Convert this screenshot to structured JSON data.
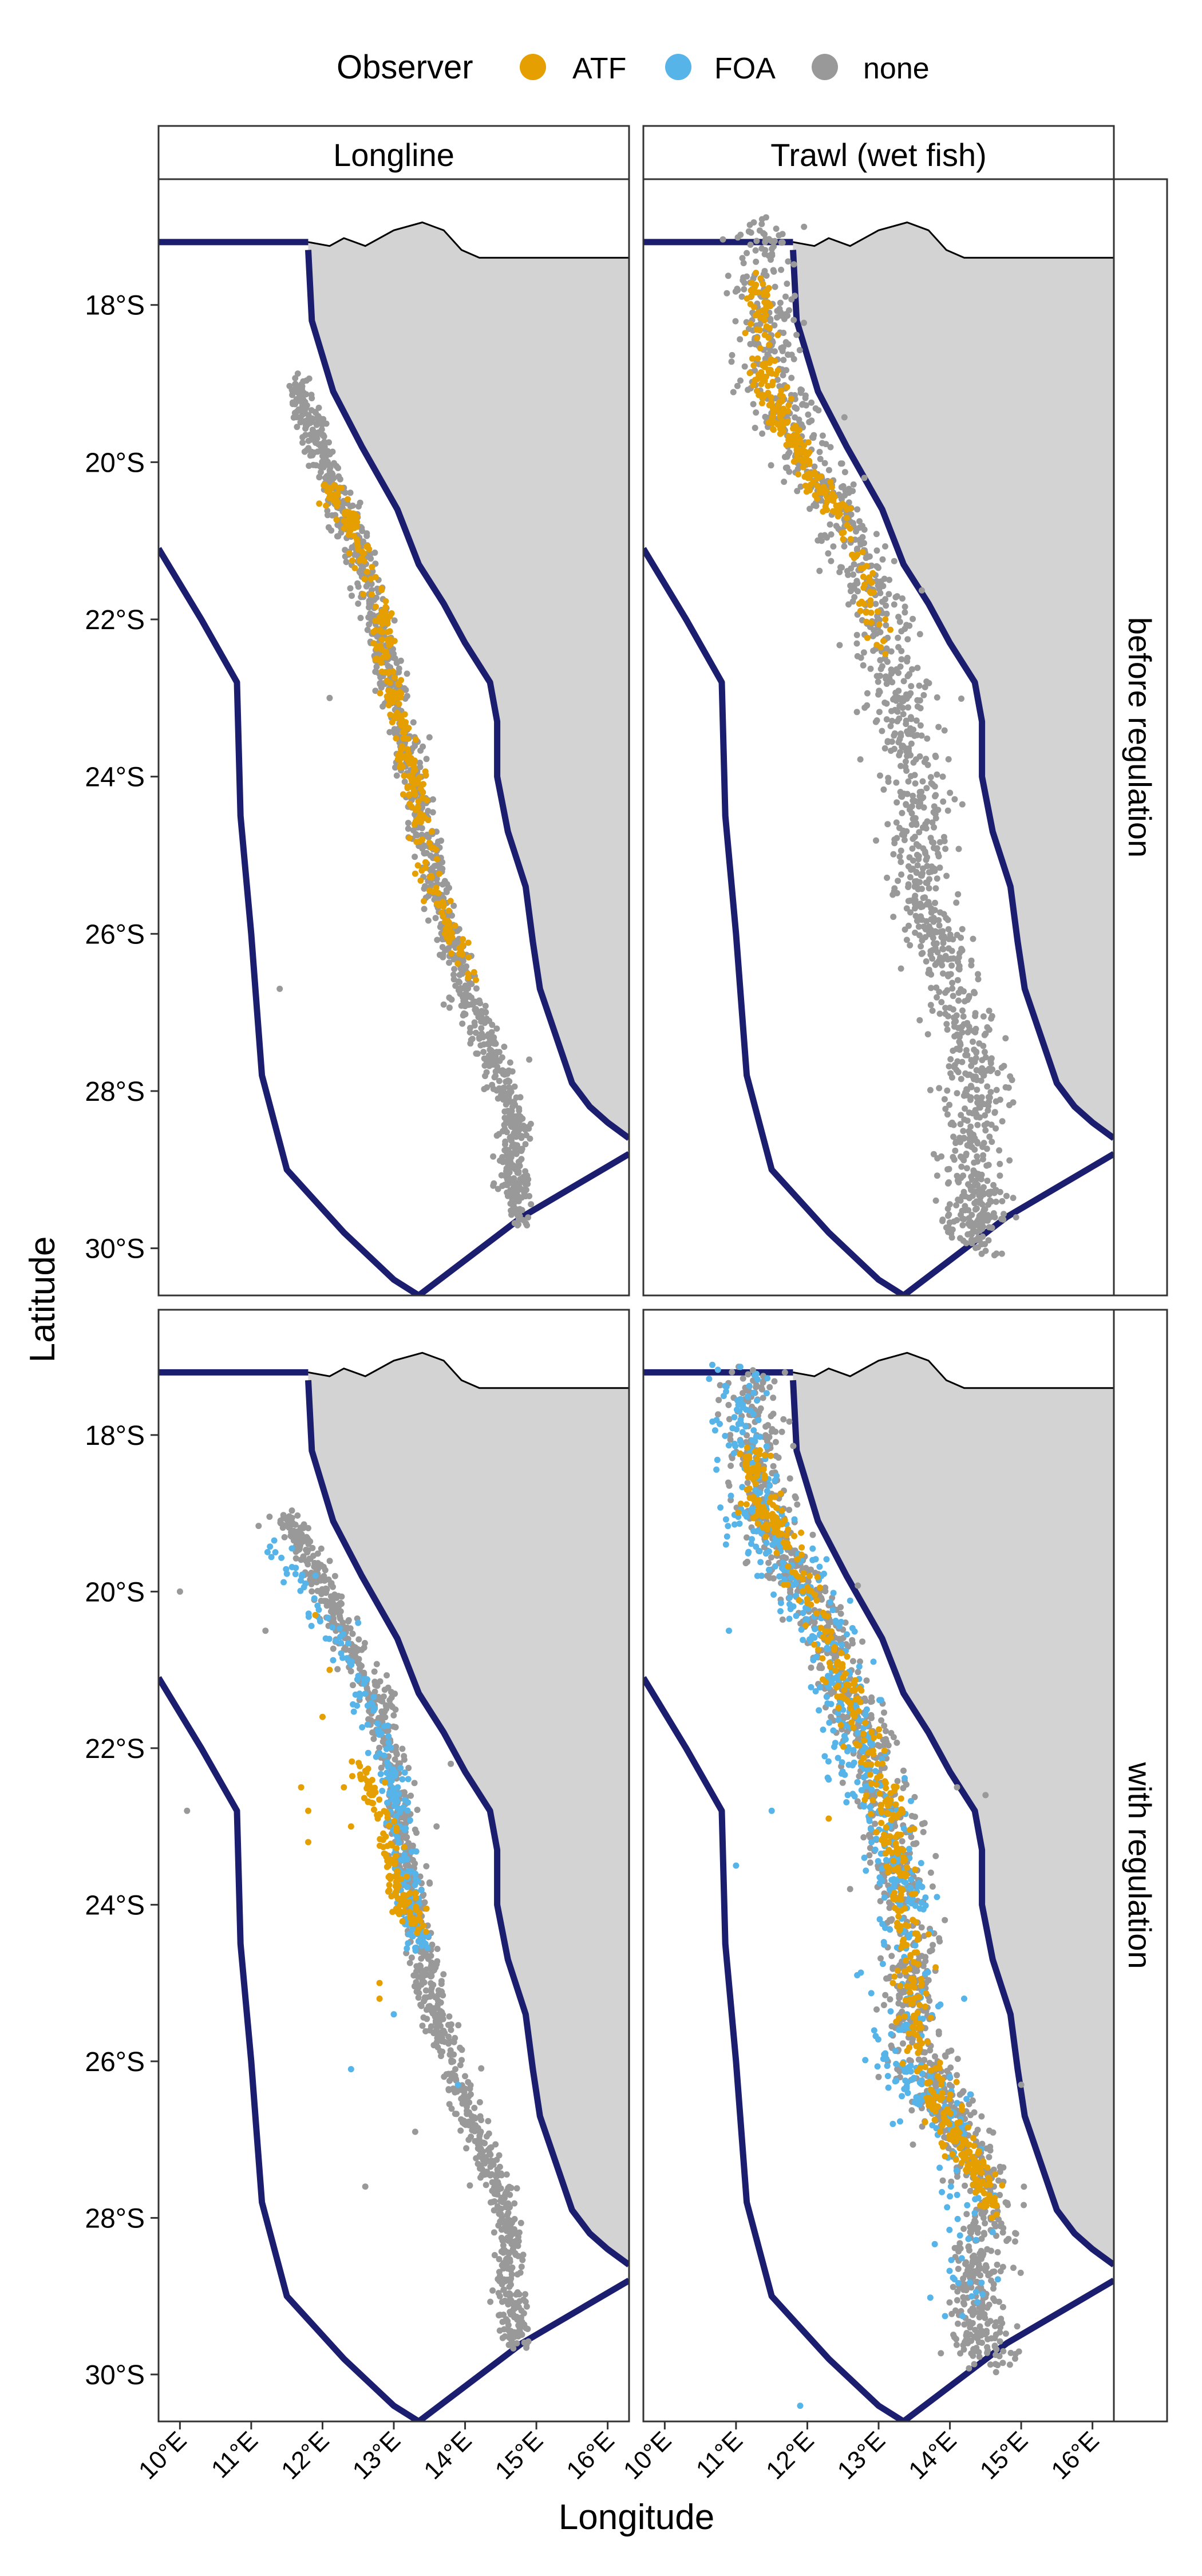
{
  "chart_data": {
    "type": "faceted-map",
    "xlabel": "Longitude",
    "ylabel": "Latitude",
    "xlim": [
      9.7,
      16.3
    ],
    "ylim": [
      -30.6,
      -16.4
    ],
    "x_ticks": [
      "10°E",
      "11°E",
      "12°E",
      "13°E",
      "14°E",
      "15°E",
      "16°E"
    ],
    "x_tick_values": [
      10,
      11,
      12,
      13,
      14,
      15,
      16
    ],
    "y_ticks": [
      "18°S",
      "20°S",
      "22°S",
      "24°S",
      "26°S",
      "28°S",
      "30°S"
    ],
    "y_tick_values": [
      -18,
      -20,
      -22,
      -24,
      -26,
      -28,
      -30
    ],
    "legend": {
      "title": "Observer",
      "position": "top",
      "items": [
        {
          "label": "ATF",
          "color": "#E69F00"
        },
        {
          "label": "FOA",
          "color": "#56B4E9"
        },
        {
          "label": "none",
          "color": "#999999"
        }
      ]
    },
    "columns": [
      "Longline",
      "Trawl (wet fish)"
    ],
    "rows": [
      "before regulation",
      "with regulation"
    ],
    "land_color": "#D3D3D3",
    "boundary_color": "#1B1D6E",
    "coastline": [
      [
        10.3,
        -16.3
      ],
      [
        11.8,
        -17.3
      ],
      [
        11.85,
        -18.2
      ],
      [
        12.15,
        -19.1
      ],
      [
        12.55,
        -19.8
      ],
      [
        13.05,
        -20.6
      ],
      [
        13.35,
        -21.3
      ],
      [
        13.7,
        -21.8
      ],
      [
        14.0,
        -22.3
      ],
      [
        14.35,
        -22.8
      ],
      [
        14.45,
        -23.3
      ],
      [
        14.45,
        -24.0
      ],
      [
        14.6,
        -24.7
      ],
      [
        14.85,
        -25.4
      ],
      [
        14.95,
        -26.1
      ],
      [
        15.05,
        -26.7
      ],
      [
        15.2,
        -27.1
      ],
      [
        15.35,
        -27.5
      ],
      [
        15.5,
        -27.9
      ],
      [
        15.75,
        -28.2
      ],
      [
        16.0,
        -28.4
      ],
      [
        16.3,
        -28.6
      ]
    ],
    "land_border": [
      [
        11.8,
        -17.2
      ],
      [
        12.1,
        -17.25
      ],
      [
        12.3,
        -17.15
      ],
      [
        12.6,
        -17.25
      ],
      [
        13.0,
        -17.05
      ],
      [
        13.4,
        -16.95
      ],
      [
        13.7,
        -17.05
      ],
      [
        13.95,
        -17.3
      ],
      [
        14.2,
        -17.4
      ],
      [
        16.3,
        -17.4
      ]
    ],
    "eez_outer": [
      [
        9.7,
        -21.1
      ],
      [
        10.3,
        -22.0
      ],
      [
        10.8,
        -22.8
      ],
      [
        10.85,
        -24.5
      ],
      [
        11.0,
        -26.0
      ],
      [
        11.15,
        -27.8
      ],
      [
        11.5,
        -29.0
      ],
      [
        12.3,
        -29.8
      ],
      [
        13.0,
        -30.4
      ],
      [
        13.35,
        -30.6
      ]
    ],
    "eez_north": [
      [
        9.7,
        -17.2
      ],
      [
        11.8,
        -17.2
      ]
    ],
    "eez_south": [
      [
        13.35,
        -30.6
      ],
      [
        14.8,
        -29.6
      ],
      [
        16.3,
        -28.8
      ]
    ],
    "panels": [
      {
        "col": "Longline",
        "row": "before regulation",
        "tracks": [
          {
            "observer": "none",
            "spread": 0.1,
            "points": [
              [
                11.6,
                -18.9
              ],
              [
                11.9,
                -19.7
              ],
              [
                12.2,
                -20.4
              ],
              [
                12.55,
                -21.2
              ],
              [
                12.8,
                -22.2
              ],
              [
                13.0,
                -23.0
              ],
              [
                13.25,
                -24.0
              ],
              [
                13.5,
                -25.0
              ],
              [
                13.75,
                -26.0
              ],
              [
                14.05,
                -26.8
              ],
              [
                14.4,
                -27.6
              ],
              [
                14.7,
                -28.4
              ],
              [
                14.65,
                -29.0
              ],
              [
                14.8,
                -29.7
              ]
            ]
          },
          {
            "observer": "ATF",
            "spread": 0.08,
            "points": [
              [
                12.05,
                -20.3
              ],
              [
                12.4,
                -20.8
              ],
              [
                12.85,
                -22.0
              ],
              [
                12.95,
                -22.8
              ],
              [
                13.15,
                -23.6
              ],
              [
                13.3,
                -24.2
              ],
              [
                13.55,
                -25.4
              ],
              [
                14.15,
                -26.6
              ]
            ]
          }
        ],
        "scatter": {
          "observer": "none",
          "points": [
            [
              12.1,
              -23.0
            ],
            [
              11.4,
              -26.7
            ],
            [
              13.7,
              -26.9
            ],
            [
              12.5,
              -21.8
            ],
            [
              13.5,
              -23.5
            ],
            [
              14.9,
              -27.6
            ]
          ]
        }
      },
      {
        "col": "Trawl (wet fish)",
        "row": "before regulation",
        "tracks": [
          {
            "observer": "none",
            "spread": 0.22,
            "points": [
              [
                11.4,
                -17.0
              ],
              [
                11.4,
                -18.0
              ],
              [
                11.5,
                -19.0
              ],
              [
                11.9,
                -19.8
              ],
              [
                12.4,
                -20.6
              ],
              [
                12.9,
                -21.6
              ],
              [
                13.2,
                -22.6
              ],
              [
                13.4,
                -23.5
              ],
              [
                13.6,
                -24.5
              ],
              [
                13.55,
                -25.4
              ],
              [
                13.85,
                -26.2
              ],
              [
                14.2,
                -27.1
              ],
              [
                14.4,
                -28.0
              ],
              [
                14.2,
                -28.8
              ],
              [
                14.35,
                -29.5
              ],
              [
                14.4,
                -29.9
              ]
            ]
          },
          {
            "observer": "ATF",
            "spread": 0.1,
            "points": [
              [
                11.3,
                -17.6
              ],
              [
                11.35,
                -18.6
              ],
              [
                11.5,
                -19.2
              ],
              [
                11.8,
                -19.7
              ],
              [
                12.1,
                -20.2
              ],
              [
                12.5,
                -20.7
              ],
              [
                13.1,
                -22.4
              ]
            ]
          }
        ],
        "scatter": {
          "observer": "none",
          "points": [
            [
              12.2,
              -21.0
            ],
            [
              13.9,
              -24.0
            ],
            [
              14.3,
              -26.4
            ],
            [
              12.8,
              -20.2
            ],
            [
              14.5,
              -28.5
            ]
          ]
        }
      },
      {
        "col": "Longline",
        "row": "with regulation",
        "tracks": [
          {
            "observer": "none",
            "spread": 0.1,
            "points": [
              [
                11.45,
                -19.0
              ],
              [
                11.9,
                -19.7
              ],
              [
                12.3,
                -20.5
              ],
              [
                12.8,
                -21.5
              ],
              [
                13.05,
                -22.5
              ],
              [
                13.2,
                -23.5
              ],
              [
                13.35,
                -24.4
              ],
              [
                13.55,
                -25.3
              ],
              [
                13.9,
                -26.3
              ],
              [
                14.3,
                -27.2
              ],
              [
                14.6,
                -28.0
              ],
              [
                14.6,
                -28.9
              ],
              [
                14.75,
                -29.6
              ]
            ]
          },
          {
            "observer": "FOA",
            "spread": 0.1,
            "points": [
              [
                11.3,
                -19.3
              ],
              [
                12.45,
                -21.0
              ],
              [
                12.95,
                -22.3
              ],
              [
                13.1,
                -23.0
              ],
              [
                13.2,
                -24.0
              ],
              [
                13.4,
                -24.6
              ]
            ]
          },
          {
            "observer": "ATF",
            "spread": 0.09,
            "points": [
              [
                12.5,
                -22.2
              ],
              [
                12.85,
                -22.9
              ],
              [
                13.1,
                -23.8
              ],
              [
                13.25,
                -24.3
              ]
            ]
          }
        ],
        "scatter": {
          "observer": "ATF",
          "points": [
            [
              11.9,
              -20.3
            ],
            [
              12.1,
              -21.0
            ],
            [
              11.7,
              -22.5
            ],
            [
              11.8,
              -23.2
            ],
            [
              12.4,
              -23.0
            ],
            [
              12.3,
              -22.5
            ],
            [
              12.0,
              -21.6
            ],
            [
              12.8,
              -25.0
            ],
            [
              12.8,
              -25.2
            ],
            [
              11.8,
              -22.8
            ]
          ]
        },
        "scatter_extra": {
          "observer": "FOA",
          "points": [
            [
              12.4,
              -26.1
            ],
            [
              13.9,
              -26.3
            ],
            [
              12.5,
              -20.4
            ],
            [
              13.0,
              -25.4
            ]
          ]
        },
        "scatter_none": {
          "observer": "none",
          "points": [
            [
              10.1,
              -22.8
            ],
            [
              11.2,
              -20.5
            ],
            [
              10.0,
              -20.0
            ],
            [
              12.6,
              -27.6
            ],
            [
              13.3,
              -26.9
            ],
            [
              13.8,
              -22.2
            ],
            [
              13.6,
              -23.0
            ],
            [
              12.7,
              -21.8
            ]
          ]
        }
      },
      {
        "col": "Trawl (wet fish)",
        "row": "with regulation",
        "tracks": [
          {
            "observer": "none",
            "spread": 0.2,
            "points": [
              [
                11.2,
                -17.2
              ],
              [
                11.3,
                -18.2
              ],
              [
                11.45,
                -19.1
              ],
              [
                11.9,
                -19.9
              ],
              [
                12.3,
                -20.7
              ],
              [
                12.7,
                -21.6
              ],
              [
                13.1,
                -22.5
              ],
              [
                13.25,
                -23.5
              ],
              [
                13.45,
                -24.5
              ],
              [
                13.4,
                -25.5
              ],
              [
                13.8,
                -26.4
              ],
              [
                14.3,
                -27.1
              ],
              [
                14.55,
                -27.8
              ],
              [
                14.4,
                -28.6
              ],
              [
                14.35,
                -29.3
              ],
              [
                14.45,
                -29.8
              ]
            ]
          },
          {
            "observer": "FOA",
            "spread": 0.22,
            "points": [
              [
                11.1,
                -17.2
              ],
              [
                11.15,
                -18.0
              ],
              [
                11.2,
                -19.0
              ],
              [
                11.5,
                -19.4
              ],
              [
                11.95,
                -20.0
              ],
              [
                12.3,
                -20.7
              ],
              [
                12.6,
                -21.5
              ],
              [
                12.6,
                -22.1
              ],
              [
                13.05,
                -22.9
              ],
              [
                13.35,
                -23.7
              ],
              [
                13.4,
                -24.4
              ],
              [
                13.3,
                -26.1
              ],
              [
                13.8,
                -26.4
              ],
              [
                14.1,
                -27.0
              ],
              [
                14.2,
                -29.3
              ]
            ]
          },
          {
            "observer": "ATF",
            "spread": 0.12,
            "points": [
              [
                11.25,
                -18.2
              ],
              [
                11.3,
                -18.9
              ],
              [
                11.6,
                -19.2
              ],
              [
                12.2,
                -20.5
              ],
              [
                12.6,
                -21.4
              ],
              [
                13.1,
                -22.6
              ],
              [
                13.2,
                -23.3
              ],
              [
                13.4,
                -24.3
              ],
              [
                13.45,
                -25.3
              ],
              [
                13.8,
                -26.4
              ],
              [
                14.1,
                -27.0
              ],
              [
                14.4,
                -27.4
              ],
              [
                14.6,
                -27.9
              ]
            ]
          }
        ],
        "scatter": {
          "observer": "FOA",
          "points": [
            [
              10.9,
              -20.5
            ],
            [
              11.5,
              -22.8
            ],
            [
              11.0,
              -23.5
            ],
            [
              12.3,
              -22.4
            ],
            [
              12.8,
              -23.4
            ],
            [
              13.6,
              -26.5
            ],
            [
              13.2,
              -26.8
            ],
            [
              11.9,
              -30.4
            ],
            [
              14.2,
              -25.2
            ],
            [
              12.7,
              -24.9
            ],
            [
              11.3,
              -19.8
            ]
          ]
        },
        "scatter_extra": {
          "observer": "ATF",
          "points": [
            [
              13.2,
              -25.0
            ],
            [
              12.3,
              -22.9
            ],
            [
              13.8,
              -24.8
            ]
          ]
        },
        "scatter_none": {
          "observer": "none",
          "points": [
            [
              14.5,
              -22.6
            ],
            [
              15.0,
              -26.3
            ],
            [
              14.1,
              -22.5
            ],
            [
              13.0,
              -26.2
            ],
            [
              12.6,
              -23.8
            ]
          ]
        }
      }
    ]
  }
}
